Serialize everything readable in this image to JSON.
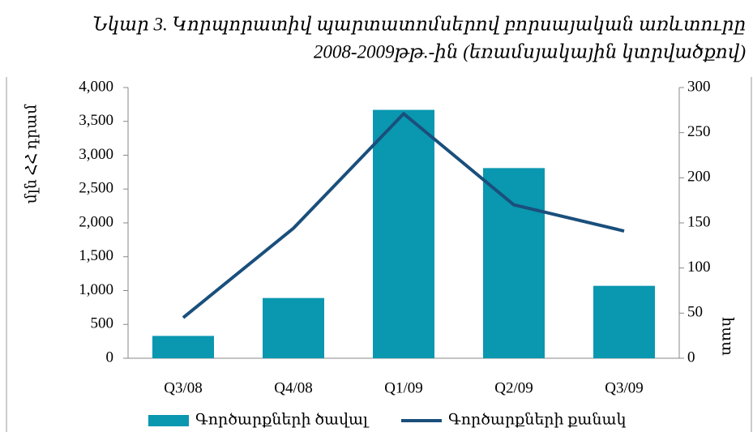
{
  "chart_data": {
    "type": "bar_line",
    "title": [
      "Նկար 3.    Կորպորատիվ պարտատոմսերով բորսայական առևտուրը",
      "2008-2009թթ.-ին (եռամսյակային կտրվածքով)"
    ],
    "ylabel": "մլն ՀՀ դրամ",
    "y2label": "հատ",
    "categories": [
      "Q3/08",
      "Q4/08",
      "Q1/09",
      "Q2/09",
      "Q3/09"
    ],
    "series": [
      {
        "name": "Գործարքների ծավալ",
        "color": "#0a97b0",
        "kind": "bar",
        "values": [
          330,
          890,
          3670,
          2810,
          1070
        ]
      },
      {
        "name": "Գործարքների քանակ",
        "color": "#1a4f7c",
        "kind": "line",
        "axis": "y2",
        "values": [
          45,
          144,
          271,
          170,
          141
        ]
      }
    ],
    "ylim": [
      0,
      4000
    ],
    "yticks": [
      0,
      500,
      {
        "value": 1000,
        "label": "1,000"
      },
      {
        "value": 1500,
        "label": "1,500"
      },
      {
        "value": 2000,
        "label": "2,000"
      },
      {
        "value": 2500,
        "label": "2,500"
      },
      {
        "value": 3000,
        "label": "3,000"
      },
      {
        "value": 3500,
        "label": "3,500"
      },
      {
        "value": 4000,
        "label": "4,000"
      }
    ],
    "y2lim": [
      0,
      300
    ],
    "y2ticks": [
      0,
      50,
      100,
      150,
      200,
      250,
      300
    ],
    "legend": "bottom"
  }
}
